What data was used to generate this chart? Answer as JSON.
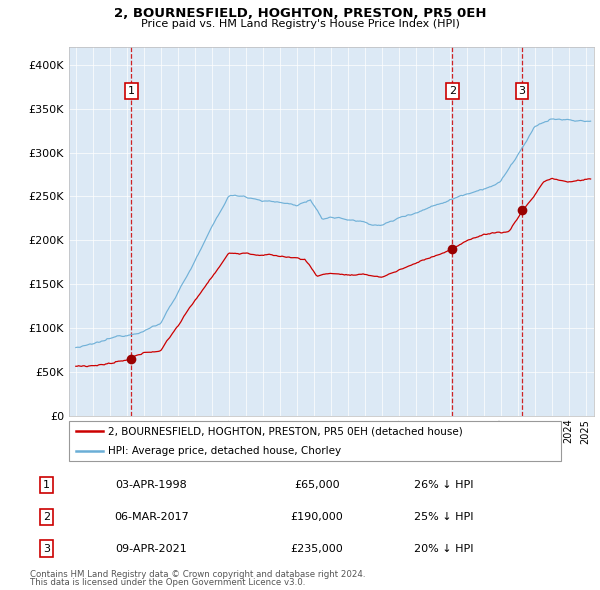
{
  "title": "2, BOURNESFIELD, HOGHTON, PRESTON, PR5 0EH",
  "subtitle": "Price paid vs. HM Land Registry's House Price Index (HPI)",
  "hpi_label": "HPI: Average price, detached house, Chorley",
  "property_label": "2, BOURNESFIELD, HOGHTON, PRESTON, PR5 0EH (detached house)",
  "footnote1": "Contains HM Land Registry data © Crown copyright and database right 2024.",
  "footnote2": "This data is licensed under the Open Government Licence v3.0.",
  "sales": [
    {
      "num": 1,
      "date": "03-APR-1998",
      "price": 65000,
      "pct": "26%",
      "dir": "↓",
      "year": 1998.27
    },
    {
      "num": 2,
      "date": "06-MAR-2017",
      "price": 190000,
      "pct": "25%",
      "dir": "↓",
      "year": 2017.17
    },
    {
      "num": 3,
      "date": "09-APR-2021",
      "price": 235000,
      "pct": "20%",
      "dir": "↓",
      "year": 2021.27
    }
  ],
  "ylim": [
    0,
    420000
  ],
  "yticks": [
    0,
    50000,
    100000,
    150000,
    200000,
    250000,
    300000,
    350000,
    400000
  ],
  "ytick_labels": [
    "£0",
    "£50K",
    "£100K",
    "£150K",
    "£200K",
    "£250K",
    "£300K",
    "£350K",
    "£400K"
  ],
  "background_color": "#dce9f5",
  "hpi_color": "#6baed6",
  "property_color": "#cc0000",
  "sale_marker_color": "#990000",
  "dashed_line_color": "#cc0000",
  "grid_color": "#ffffff",
  "xlim_start": 1994.6,
  "xlim_end": 2025.5
}
